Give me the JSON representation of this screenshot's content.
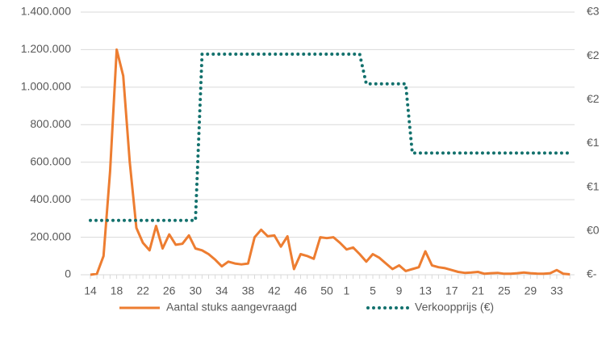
{
  "chart_data": {
    "type": "line",
    "categories": [
      "14",
      null,
      null,
      null,
      "18",
      null,
      null,
      null,
      "22",
      null,
      null,
      null,
      "26",
      null,
      null,
      null,
      "30",
      null,
      null,
      null,
      "34",
      null,
      null,
      null,
      "38",
      null,
      null,
      null,
      "42",
      null,
      null,
      null,
      "46",
      null,
      null,
      null,
      "50",
      null,
      null,
      "1",
      null,
      null,
      null,
      "5",
      null,
      null,
      null,
      "9",
      null,
      null,
      null,
      "13",
      null,
      null,
      null,
      "17",
      null,
      null,
      null,
      "21",
      null,
      null,
      null,
      "25",
      null,
      null,
      null,
      "29",
      null,
      null,
      null,
      "33",
      null,
      null
    ],
    "series": [
      {
        "name": "Aantal stuks aangevraagd",
        "color": "#ed7d31",
        "style": "solid",
        "values": [
          0,
          5000,
          100000,
          550000,
          1200000,
          1060000,
          600000,
          250000,
          170000,
          130000,
          260000,
          140000,
          215000,
          160000,
          165000,
          210000,
          140000,
          130000,
          110000,
          80000,
          45000,
          70000,
          60000,
          55000,
          60000,
          200000,
          240000,
          205000,
          210000,
          150000,
          205000,
          30000,
          110000,
          100000,
          85000,
          200000,
          195000,
          200000,
          170000,
          135000,
          145000,
          110000,
          70000,
          110000,
          90000,
          60000,
          30000,
          50000,
          20000,
          30000,
          40000,
          125000,
          50000,
          40000,
          35000,
          25000,
          15000,
          10000,
          12000,
          15000,
          5000,
          8000,
          10000,
          5000,
          5000,
          8000,
          12000,
          8000,
          6000,
          5000,
          8000,
          25000,
          5000,
          2000
        ]
      },
      {
        "name": "Verkoopprijs (€)",
        "color": "#13716d",
        "style": "dotted",
        "axis": "y2",
        "values": [
          0.62,
          0.62,
          0.62,
          0.62,
          0.62,
          0.62,
          0.62,
          0.62,
          0.62,
          0.62,
          0.62,
          0.62,
          0.62,
          0.62,
          0.62,
          0.62,
          0.62,
          2.52,
          2.52,
          2.52,
          2.52,
          2.52,
          2.52,
          2.52,
          2.52,
          2.52,
          2.52,
          2.52,
          2.52,
          2.52,
          2.52,
          2.52,
          2.52,
          2.52,
          2.52,
          2.52,
          2.52,
          2.52,
          2.52,
          2.52,
          2.52,
          2.52,
          2.18,
          2.18,
          2.18,
          2.18,
          2.18,
          2.18,
          2.18,
          1.39,
          1.39,
          1.39,
          1.39,
          1.39,
          1.39,
          1.39,
          1.39,
          1.39,
          1.39,
          1.39,
          1.39,
          1.39,
          1.39,
          1.39,
          1.39,
          1.39,
          1.39,
          1.39,
          1.39,
          1.39,
          1.39,
          1.39,
          1.39,
          1.39
        ]
      }
    ],
    "ylim": [
      0,
      1400000
    ],
    "yticks": [
      {
        "value": 0,
        "label": "0"
      },
      {
        "value": 200000,
        "label": "200.000"
      },
      {
        "value": 400000,
        "label": "400.000"
      },
      {
        "value": 600000,
        "label": "600.000"
      },
      {
        "value": 800000,
        "label": "800.000"
      },
      {
        "value": 1000000,
        "label": "1.000.000"
      },
      {
        "value": 1200000,
        "label": "1.200.000"
      },
      {
        "value": 1400000,
        "label": "1.400.000"
      }
    ],
    "y2lim": [
      0,
      3
    ],
    "y2ticks": [
      {
        "value": 0,
        "label": "€-"
      },
      {
        "value": 0.5,
        "label": "€0"
      },
      {
        "value": 1,
        "label": "€1"
      },
      {
        "value": 1.5,
        "label": "€1"
      },
      {
        "value": 2,
        "label": "€2"
      },
      {
        "value": 2.5,
        "label": "€2"
      },
      {
        "value": 3,
        "label": "€3"
      }
    ],
    "grid": true,
    "legend": "bottom"
  }
}
